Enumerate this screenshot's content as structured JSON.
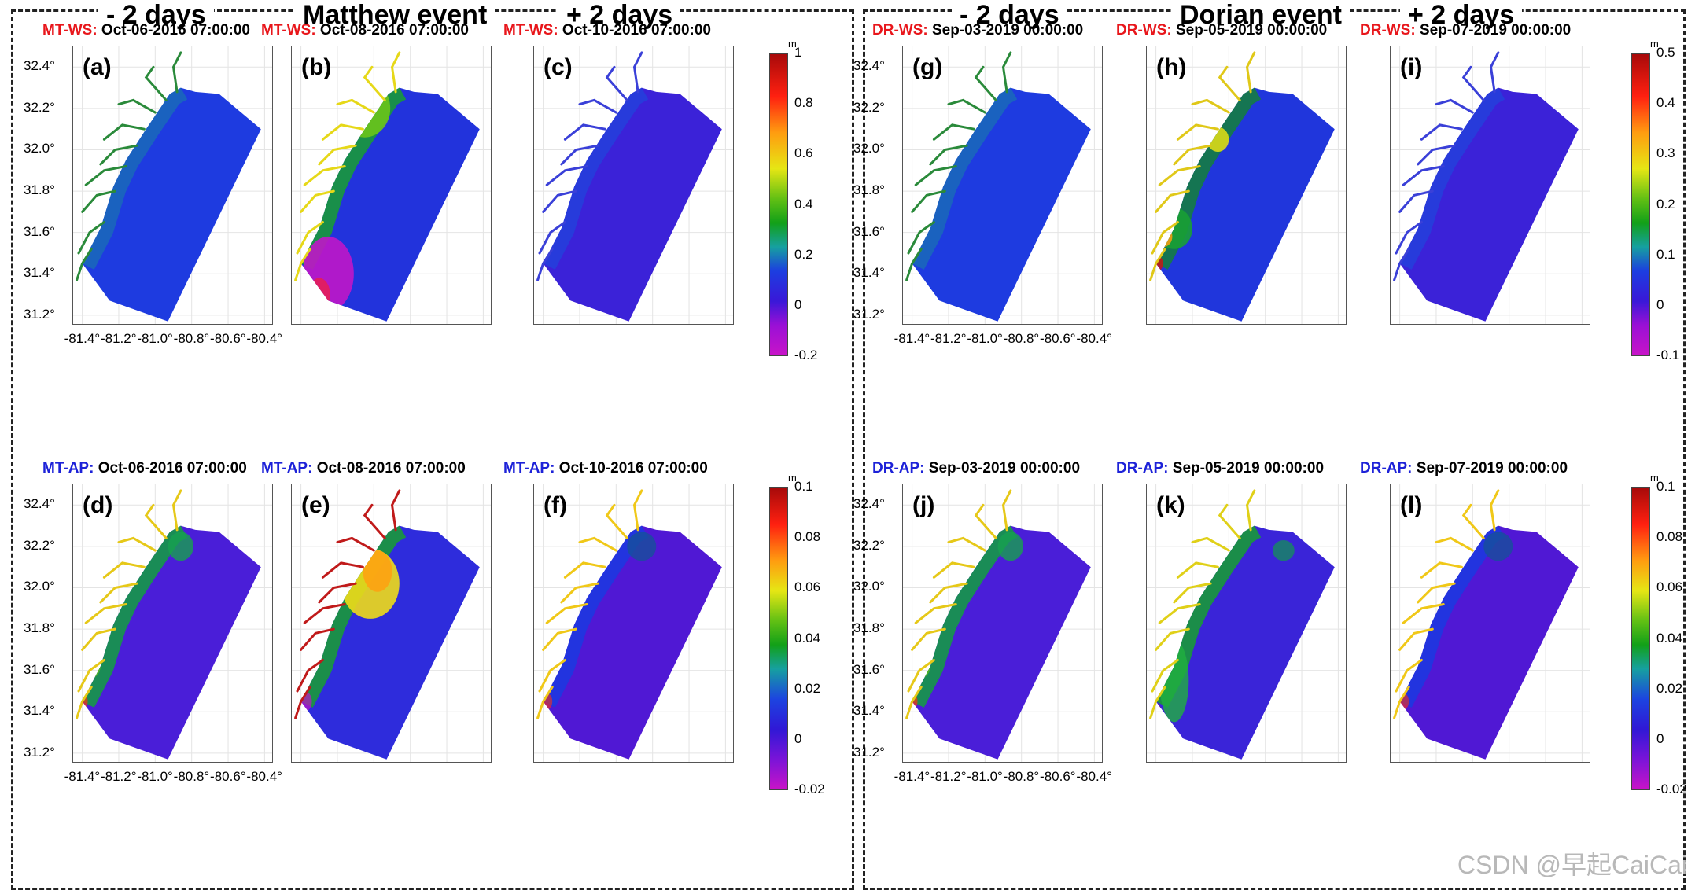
{
  "headers": {
    "left": [
      "- 2 days",
      "Matthew event",
      "+ 2 days"
    ],
    "right": [
      "- 2 days",
      "Dorian event",
      "+ 2 days"
    ]
  },
  "chart_data": {
    "type": "heatmap",
    "y_ticks": [
      "32.4°",
      "32.2°",
      "32.0°",
      "31.8°",
      "31.6°",
      "31.4°",
      "31.2°"
    ],
    "x_ticks": [
      "-81.4°",
      "-81.2°",
      "-81.0°",
      "-80.8°",
      "-80.6°",
      "-80.4°"
    ],
    "xlim": [
      -81.45,
      -80.35
    ],
    "ylim": [
      31.15,
      32.5
    ],
    "colors": {
      "ws_title": "#e8161b",
      "ap_title": "#1d22d8"
    },
    "panels": [
      {
        "label": "(a)",
        "prefix": "MT-WS:",
        "time": "Oct-06-2016 07:00:00",
        "kind": "ws",
        "pattern": "calm"
      },
      {
        "label": "(b)",
        "prefix": "MT-WS:",
        "time": "Oct-08-2016 07:00:00",
        "kind": "ws",
        "pattern": "matthew_ws"
      },
      {
        "label": "(c)",
        "prefix": "MT-WS:",
        "time": "Oct-10-2016 07:00:00",
        "kind": "ws",
        "pattern": "calm_after"
      },
      {
        "label": "(g)",
        "prefix": "DR-WS:",
        "time": "Sep-03-2019 00:00:00",
        "kind": "ws",
        "pattern": "calm"
      },
      {
        "label": "(h)",
        "prefix": "DR-WS:",
        "time": "Sep-05-2019 00:00:00",
        "kind": "ws",
        "pattern": "dorian_ws"
      },
      {
        "label": "(i)",
        "prefix": "DR-WS:",
        "time": "Sep-07-2019 00:00:00",
        "kind": "ws",
        "pattern": "calm_after"
      },
      {
        "label": "(d)",
        "prefix": "MT-AP:",
        "time": "Oct-06-2016 07:00:00",
        "kind": "ap",
        "pattern": "ap_before"
      },
      {
        "label": "(e)",
        "prefix": "MT-AP:",
        "time": "Oct-08-2016 07:00:00",
        "kind": "ap",
        "pattern": "matthew_ap"
      },
      {
        "label": "(f)",
        "prefix": "MT-AP:",
        "time": "Oct-10-2016 07:00:00",
        "kind": "ap",
        "pattern": "ap_after"
      },
      {
        "label": "(j)",
        "prefix": "DR-AP:",
        "time": "Sep-03-2019 00:00:00",
        "kind": "ap",
        "pattern": "ap_before"
      },
      {
        "label": "(k)",
        "prefix": "DR-AP:",
        "time": "Sep-05-2019 00:00:00",
        "kind": "ap",
        "pattern": "dorian_ap"
      },
      {
        "label": "(l)",
        "prefix": "DR-AP:",
        "time": "Sep-07-2019 00:00:00",
        "kind": "ap",
        "pattern": "ap_after"
      }
    ],
    "colorbars": [
      {
        "name": "matthew-ws",
        "unit": "m",
        "ticks": [
          "1",
          "0.8",
          "0.6",
          "0.4",
          "0.2",
          "0",
          "-0.2"
        ],
        "range": [
          -0.2,
          1.0
        ]
      },
      {
        "name": "dorian-ws",
        "unit": "m",
        "ticks": [
          "0.5",
          "0.4",
          "0.3",
          "0.2",
          "0.1",
          "0",
          "-0.1"
        ],
        "range": [
          -0.1,
          0.5
        ]
      },
      {
        "name": "matthew-ap",
        "unit": "m",
        "ticks": [
          "0.1",
          "0.08",
          "0.06",
          "0.04",
          "0.02",
          "0",
          "-0.02"
        ],
        "range": [
          -0.02,
          0.1
        ]
      },
      {
        "name": "dorian-ap",
        "unit": "m",
        "ticks": [
          "0.1",
          "0.08",
          "0.06",
          "0.04",
          "0.02",
          "0",
          "-0.02"
        ],
        "range": [
          -0.02,
          0.1
        ]
      }
    ]
  },
  "watermark": "CSDN @早起CaiCai"
}
